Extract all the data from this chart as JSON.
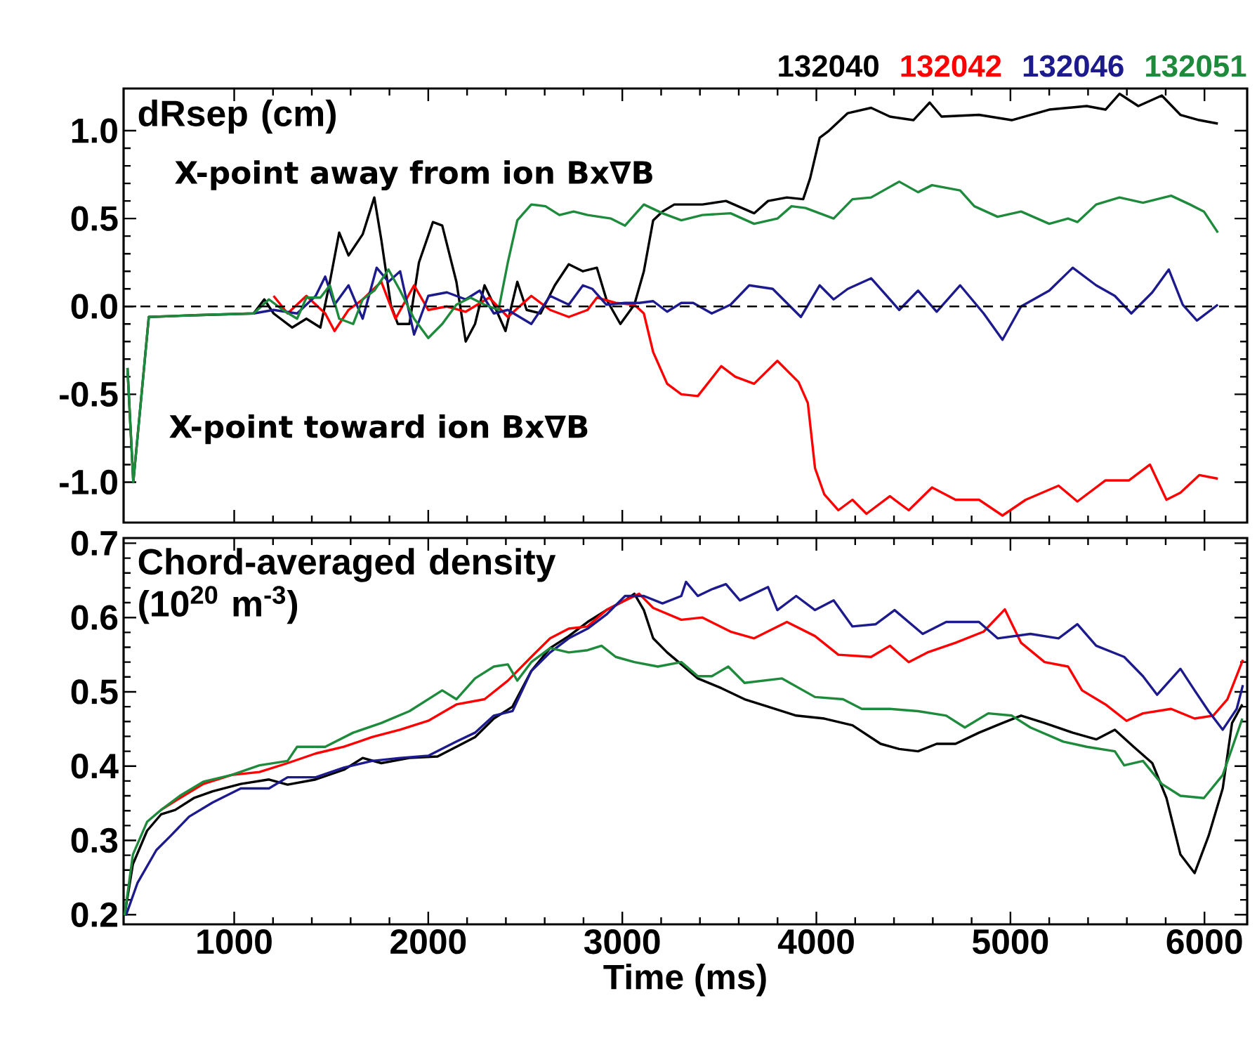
{
  "chart_data": [
    {
      "type": "line",
      "title": "dRsep (cm)",
      "annotations": [
        "X-point away from ion Bx∇B",
        "X-point toward ion Bx∇B"
      ],
      "xlim": [
        430,
        6220
      ],
      "xticks": [
        1000,
        2000,
        3000,
        4000,
        5000,
        6000
      ],
      "tick_labels": "y",
      "ylim": [
        -1.23,
        1.24
      ],
      "yticks": [
        {
          "value": -1.0,
          "label": "-1.0"
        },
        {
          "value": -0.5,
          "label": "-0.5"
        },
        {
          "value": 0.0,
          "label": "0.0"
        },
        {
          "value": 0.5,
          "label": "0.5"
        },
        {
          "value": 1.0,
          "label": "1.0"
        }
      ],
      "legend": "top right",
      "ref_lines": [
        {
          "axis": "y",
          "value": 0,
          "color": "#000000",
          "line_style": "dashed"
        }
      ],
      "series": [
        {
          "name": "132040",
          "color": "#000000",
          "x": [
            450,
            480,
            560,
            800,
            1100,
            1155,
            1203,
            1299,
            1372,
            1444,
            1493,
            1541,
            1589,
            1662,
            1722,
            1758,
            1807,
            1843,
            1903,
            1952,
            2024,
            2072,
            2145,
            2193,
            2241,
            2290,
            2338,
            2398,
            2459,
            2507,
            2579,
            2652,
            2724,
            2797,
            2869,
            2918,
            2990,
            3062,
            3111,
            3159,
            3207,
            3268,
            3413,
            3534,
            3679,
            3751,
            3848,
            3932,
            3968,
            4017,
            4065,
            4162,
            4282,
            4379,
            4500,
            4584,
            4645,
            4838,
            5007,
            5200,
            5393,
            5490,
            5562,
            5659,
            5780,
            5876,
            5973,
            6069
          ],
          "values": [
            -0.35,
            -1.0,
            -0.06,
            -0.05,
            -0.04,
            0.04,
            -0.04,
            -0.12,
            -0.07,
            -0.12,
            0.14,
            0.42,
            0.29,
            0.41,
            0.62,
            0.38,
            0.01,
            -0.1,
            -0.1,
            0.25,
            0.48,
            0.46,
            0.14,
            -0.2,
            -0.1,
            0.12,
            0.01,
            -0.14,
            0.14,
            -0.02,
            -0.04,
            0.12,
            0.24,
            0.2,
            0.22,
            0.04,
            -0.1,
            0.01,
            0.2,
            0.49,
            0.54,
            0.58,
            0.58,
            0.6,
            0.53,
            0.6,
            0.62,
            0.61,
            0.73,
            0.96,
            1.0,
            1.1,
            1.13,
            1.08,
            1.06,
            1.16,
            1.08,
            1.09,
            1.06,
            1.12,
            1.14,
            1.12,
            1.21,
            1.14,
            1.2,
            1.09,
            1.06,
            1.04
          ]
        },
        {
          "name": "132042",
          "color": "#ff0000",
          "x": [
            1203,
            1275,
            1372,
            1469,
            1517,
            1589,
            1662,
            1758,
            1831,
            1927,
            2000,
            2096,
            2193,
            2314,
            2410,
            2531,
            2628,
            2724,
            2821,
            2869,
            2966,
            3062,
            3111,
            3159,
            3231,
            3304,
            3389,
            3510,
            3582,
            3679,
            3799,
            3908,
            3956,
            3993,
            4041,
            4113,
            4186,
            4258,
            4379,
            4476,
            4596,
            4717,
            4838,
            4959,
            5079,
            5248,
            5345,
            5490,
            5611,
            5719,
            5804,
            5876,
            5973,
            6069
          ],
          "values": [
            0.06,
            -0.04,
            0.06,
            -0.04,
            -0.14,
            -0.02,
            0.04,
            0.14,
            -0.07,
            0.12,
            -0.02,
            0.0,
            -0.03,
            0.05,
            -0.06,
            0.06,
            -0.02,
            -0.06,
            -0.02,
            0.05,
            0.02,
            0.01,
            -0.04,
            -0.26,
            -0.44,
            -0.5,
            -0.51,
            -0.34,
            -0.4,
            -0.44,
            -0.31,
            -0.43,
            -0.55,
            -0.92,
            -1.07,
            -1.16,
            -1.1,
            -1.18,
            -1.08,
            -1.16,
            -1.03,
            -1.1,
            -1.1,
            -1.19,
            -1.1,
            -1.02,
            -1.11,
            -0.99,
            -0.99,
            -0.9,
            -1.1,
            -1.06,
            -0.96,
            -0.98
          ]
        },
        {
          "name": "132046",
          "color": "#1c1a8c",
          "x": [
            1100,
            1203,
            1324,
            1420,
            1469,
            1517,
            1589,
            1662,
            1734,
            1795,
            1855,
            1927,
            2000,
            2096,
            2193,
            2265,
            2338,
            2410,
            2531,
            2628,
            2724,
            2797,
            2845,
            2918,
            3014,
            3087,
            3159,
            3231,
            3304,
            3365,
            3461,
            3558,
            3654,
            3775,
            3920,
            4017,
            4089,
            4162,
            4282,
            4427,
            4524,
            4620,
            4741,
            4862,
            4959,
            5055,
            5200,
            5321,
            5442,
            5538,
            5623,
            5731,
            5816,
            5888,
            5961,
            6069
          ],
          "values": [
            -0.04,
            -0.02,
            -0.04,
            0.06,
            0.17,
            0.01,
            0.12,
            -0.07,
            0.22,
            0.14,
            0.2,
            -0.16,
            0.06,
            0.08,
            0.04,
            0.09,
            -0.04,
            -0.02,
            -0.1,
            0.06,
            0.01,
            0.12,
            0.1,
            0.01,
            0.02,
            0.02,
            0.03,
            -0.03,
            0.02,
            0.02,
            -0.04,
            0.01,
            0.12,
            0.1,
            -0.06,
            0.12,
            0.04,
            0.1,
            0.16,
            -0.02,
            0.09,
            -0.03,
            0.12,
            -0.04,
            -0.19,
            0.0,
            0.09,
            0.22,
            0.12,
            0.06,
            -0.04,
            0.08,
            0.21,
            0.01,
            -0.08,
            0.01
          ]
        },
        {
          "name": "132051",
          "color": "#1e8a3c",
          "x": [
            450,
            480,
            560,
            800,
            1100,
            1179,
            1251,
            1324,
            1372,
            1444,
            1493,
            1541,
            1613,
            1662,
            1722,
            1795,
            1855,
            1927,
            2000,
            2072,
            2145,
            2217,
            2290,
            2362,
            2410,
            2459,
            2531,
            2604,
            2676,
            2749,
            2821,
            2942,
            3014,
            3111,
            3207,
            3304,
            3413,
            3558,
            3679,
            3799,
            3872,
            3944,
            4089,
            4186,
            4282,
            4427,
            4524,
            4596,
            4741,
            4814,
            4934,
            5055,
            5200,
            5297,
            5345,
            5442,
            5562,
            5683,
            5828,
            5925,
            5997,
            6069
          ],
          "values": [
            -0.35,
            -1.0,
            -0.06,
            -0.05,
            -0.04,
            0.04,
            -0.02,
            -0.07,
            0.05,
            0.05,
            0.12,
            -0.07,
            -0.1,
            0.04,
            0.09,
            0.21,
            0.09,
            -0.07,
            -0.18,
            -0.1,
            0.01,
            0.05,
            0.01,
            -0.02,
            0.25,
            0.49,
            0.58,
            0.57,
            0.52,
            0.54,
            0.52,
            0.5,
            0.46,
            0.58,
            0.53,
            0.49,
            0.52,
            0.53,
            0.47,
            0.5,
            0.57,
            0.56,
            0.5,
            0.61,
            0.62,
            0.71,
            0.65,
            0.69,
            0.66,
            0.57,
            0.51,
            0.54,
            0.47,
            0.5,
            0.48,
            0.58,
            0.62,
            0.59,
            0.63,
            0.58,
            0.54,
            0.42
          ]
        }
      ]
    },
    {
      "type": "line",
      "title": "Chord-averaged density (10$^{20}$ m$^{-3}$)",
      "xlabel": "Time (ms)",
      "xlim": [
        430,
        6220
      ],
      "xticks": [
        1000,
        2000,
        3000,
        4000,
        5000,
        6000
      ],
      "ylim": [
        0.187,
        0.707
      ],
      "yticks": [
        0.2,
        0.3,
        0.4,
        0.5,
        0.6,
        0.7
      ],
      "series": [
        {
          "color": "#000000",
          "x": [
            435,
            478,
            551,
            623,
            696,
            792,
            889,
            1034,
            1179,
            1275,
            1420,
            1565,
            1662,
            1758,
            1903,
            2048,
            2145,
            2241,
            2338,
            2434,
            2531,
            2628,
            2724,
            2821,
            2918,
            3014,
            3062,
            3111,
            3159,
            3231,
            3304,
            3389,
            3510,
            3630,
            3751,
            3896,
            4041,
            4186,
            4331,
            4427,
            4524,
            4620,
            4717,
            4838,
            4959,
            5055,
            5176,
            5321,
            5442,
            5538,
            5635,
            5731,
            5804,
            5876,
            5949,
            6021,
            6094,
            6142,
            6195
          ],
          "values": [
            0.199,
            0.268,
            0.313,
            0.335,
            0.341,
            0.357,
            0.366,
            0.376,
            0.382,
            0.375,
            0.382,
            0.395,
            0.411,
            0.404,
            0.411,
            0.413,
            0.426,
            0.439,
            0.464,
            0.48,
            0.528,
            0.559,
            0.575,
            0.594,
            0.61,
            0.623,
            0.632,
            0.61,
            0.572,
            0.553,
            0.537,
            0.518,
            0.505,
            0.49,
            0.48,
            0.468,
            0.464,
            0.455,
            0.43,
            0.423,
            0.42,
            0.43,
            0.43,
            0.445,
            0.458,
            0.468,
            0.458,
            0.445,
            0.436,
            0.449,
            0.426,
            0.404,
            0.357,
            0.281,
            0.256,
            0.306,
            0.37,
            0.458,
            0.483
          ]
        },
        {
          "color": "#ff0000",
          "x": [
            623,
            720,
            841,
            986,
            1130,
            1275,
            1420,
            1565,
            1710,
            1855,
            2000,
            2145,
            2290,
            2410,
            2531,
            2628,
            2724,
            2821,
            2918,
            3014,
            3087,
            3159,
            3304,
            3413,
            3558,
            3679,
            3848,
            3993,
            4113,
            4282,
            4379,
            4476,
            4572,
            4717,
            4862,
            4971,
            5055,
            5176,
            5297,
            5369,
            5490,
            5598,
            5683,
            5828,
            5949,
            6045,
            6118,
            6198
          ],
          "values": [
            0.341,
            0.357,
            0.376,
            0.388,
            0.392,
            0.404,
            0.417,
            0.426,
            0.439,
            0.449,
            0.461,
            0.483,
            0.49,
            0.515,
            0.547,
            0.572,
            0.585,
            0.588,
            0.61,
            0.623,
            0.632,
            0.613,
            0.597,
            0.6,
            0.581,
            0.572,
            0.594,
            0.575,
            0.55,
            0.547,
            0.562,
            0.54,
            0.553,
            0.566,
            0.581,
            0.611,
            0.566,
            0.54,
            0.534,
            0.502,
            0.483,
            0.461,
            0.471,
            0.477,
            0.464,
            0.468,
            0.49,
            0.543
          ]
        },
        {
          "color": "#1c1a8c",
          "x": [
            442,
            502,
            599,
            672,
            768,
            889,
            1034,
            1179,
            1275,
            1420,
            1565,
            1710,
            1855,
            2000,
            2145,
            2241,
            2338,
            2434,
            2531,
            2628,
            2724,
            2821,
            2918,
            3014,
            3111,
            3207,
            3304,
            3328,
            3389,
            3461,
            3534,
            3606,
            3751,
            3799,
            3896,
            3993,
            4089,
            4186,
            4306,
            4403,
            4548,
            4669,
            4838,
            4934,
            5103,
            5248,
            5345,
            5442,
            5586,
            5683,
            5756,
            5876,
            5949,
            6021,
            6094,
            6166,
            6198
          ],
          "values": [
            0.199,
            0.243,
            0.287,
            0.306,
            0.332,
            0.351,
            0.37,
            0.37,
            0.385,
            0.385,
            0.398,
            0.407,
            0.411,
            0.414,
            0.433,
            0.445,
            0.468,
            0.474,
            0.528,
            0.553,
            0.572,
            0.585,
            0.604,
            0.629,
            0.629,
            0.619,
            0.629,
            0.648,
            0.629,
            0.638,
            0.645,
            0.623,
            0.641,
            0.61,
            0.629,
            0.61,
            0.623,
            0.588,
            0.591,
            0.61,
            0.578,
            0.594,
            0.594,
            0.572,
            0.578,
            0.572,
            0.591,
            0.562,
            0.547,
            0.521,
            0.496,
            0.531,
            0.502,
            0.474,
            0.449,
            0.477,
            0.509
          ]
        },
        {
          "color": "#1e8a3c",
          "x": [
            435,
            478,
            551,
            623,
            720,
            841,
            986,
            1130,
            1275,
            1324,
            1469,
            1613,
            1758,
            1903,
            2072,
            2145,
            2241,
            2338,
            2410,
            2459,
            2531,
            2628,
            2724,
            2821,
            2893,
            2966,
            3062,
            3183,
            3304,
            3389,
            3461,
            3546,
            3630,
            3823,
            3993,
            4137,
            4234,
            4379,
            4524,
            4669,
            4765,
            4886,
            5007,
            5103,
            5272,
            5393,
            5538,
            5586,
            5683,
            5780,
            5876,
            5997,
            6094,
            6195
          ],
          "values": [
            0.199,
            0.281,
            0.325,
            0.341,
            0.36,
            0.379,
            0.388,
            0.401,
            0.407,
            0.426,
            0.426,
            0.445,
            0.458,
            0.474,
            0.502,
            0.49,
            0.518,
            0.534,
            0.537,
            0.515,
            0.54,
            0.559,
            0.553,
            0.556,
            0.562,
            0.547,
            0.54,
            0.534,
            0.54,
            0.521,
            0.521,
            0.534,
            0.512,
            0.518,
            0.493,
            0.49,
            0.477,
            0.477,
            0.474,
            0.468,
            0.452,
            0.471,
            0.468,
            0.452,
            0.433,
            0.426,
            0.42,
            0.401,
            0.407,
            0.376,
            0.36,
            0.357,
            0.388,
            0.464
          ]
        }
      ]
    }
  ]
}
